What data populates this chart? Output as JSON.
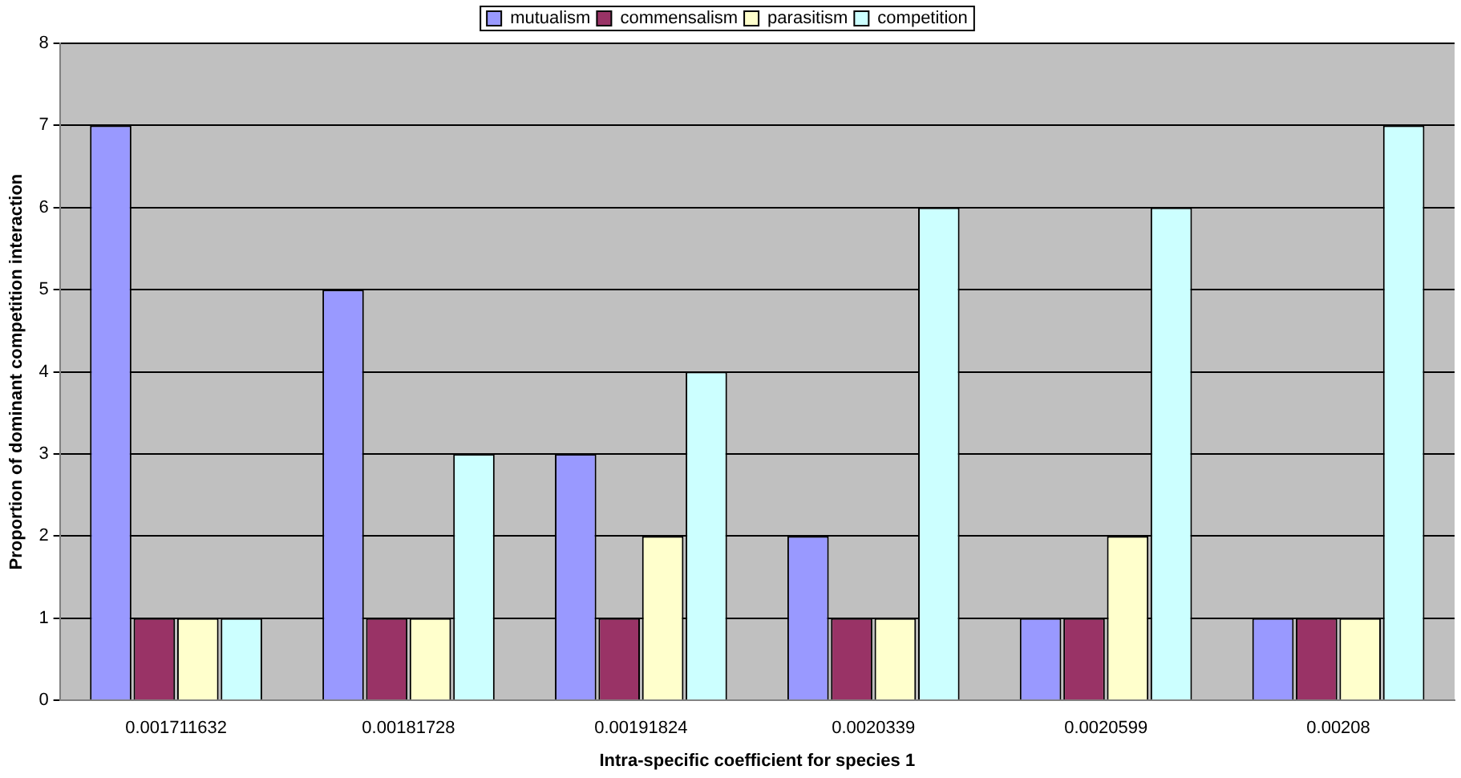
{
  "chart_data": {
    "type": "bar",
    "xlabel": "Intra-specific coefficient for species 1",
    "ylabel": "Proportion of dominant competition interaction",
    "categories": [
      "0.001711632",
      "0.00181728",
      "0.00191824",
      "0.0020339",
      "0.0020599",
      "0.00208"
    ],
    "series": [
      {
        "name": "mutualism",
        "color": "#9999ff",
        "values": [
          7,
          5,
          3,
          2,
          1,
          1
        ]
      },
      {
        "name": "commensalism",
        "color": "#993366",
        "values": [
          1,
          1,
          1,
          1,
          1,
          1
        ]
      },
      {
        "name": "parasitism",
        "color": "#ffffcc",
        "values": [
          1,
          1,
          2,
          1,
          2,
          1
        ]
      },
      {
        "name": "competition",
        "color": "#ccffff",
        "values": [
          1,
          3,
          4,
          6,
          6,
          7
        ]
      }
    ],
    "ylim": [
      0,
      8
    ],
    "yticks": [
      0,
      1,
      2,
      3,
      4,
      5,
      6,
      7,
      8
    ],
    "grid": "y",
    "legend": "top"
  }
}
